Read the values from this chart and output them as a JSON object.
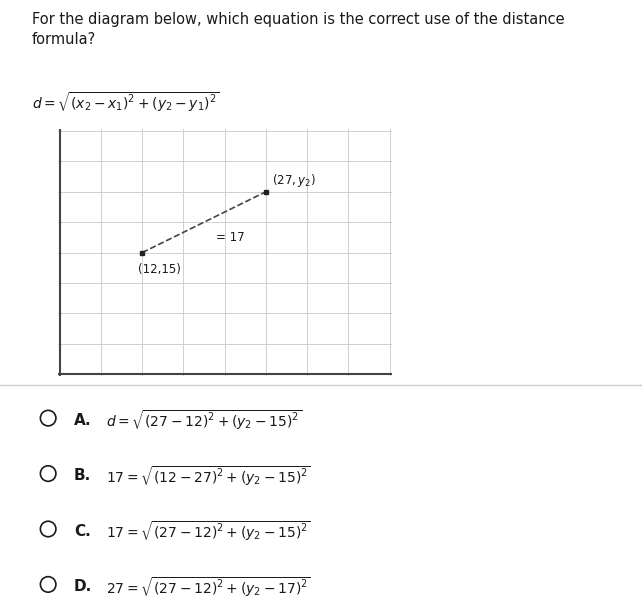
{
  "bg_color": "#ffffff",
  "question_text": "For the diagram below, which equation is the correct use of the distance\nformula?",
  "formula_text": "$d = \\sqrt{(x_2 - x_1)^2 + (y_2 - y_1)^2}$",
  "grid_cols": 8,
  "grid_rows": 8,
  "point1": [
    2,
    4
  ],
  "point2": [
    5,
    6
  ],
  "point1_label": "(12,15)",
  "point2_label": "$(27, y_2)$",
  "midlabel": "= 17",
  "options_labels": [
    "A.",
    "B.",
    "C.",
    "D."
  ],
  "options_math": [
    "$d = \\sqrt{(27-12)^2+(y_2-15)^2}$",
    "$17 = \\sqrt{(12-27)^2+(y_2-15)^2}$",
    "$17 = \\sqrt{(27-12)^2+(y_2-15)^2}$",
    "$27 = \\sqrt{(27-12)^2+(y_2-17)^2}$"
  ],
  "text_color": "#1a1a1a",
  "grid_color": "#d0d0d0",
  "line_color": "#444444",
  "point_color": "#222222",
  "axes_color": "#444444",
  "divider_color": "#cccccc",
  "question_fontsize": 10.5,
  "formula_fontsize": 10,
  "option_label_fontsize": 11,
  "option_math_fontsize": 10,
  "diagram_label_fontsize": 8.5
}
